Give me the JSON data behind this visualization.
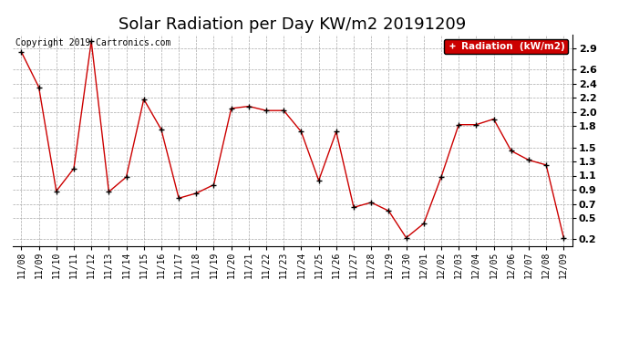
{
  "title": "Solar Radiation per Day KW/m2 20191209",
  "copyright_text": "Copyright 2019 Cartronics.com",
  "legend_label": "Radiation  (kW/m2)",
  "labels": [
    "11/08",
    "11/09",
    "11/10",
    "11/11",
    "11/12",
    "11/13",
    "11/14",
    "11/15",
    "11/16",
    "11/17",
    "11/18",
    "11/19",
    "11/20",
    "11/21",
    "11/22",
    "11/23",
    "11/24",
    "11/25",
    "11/26",
    "11/27",
    "11/28",
    "11/29",
    "11/30",
    "12/01",
    "12/02",
    "12/03",
    "12/04",
    "12/05",
    "12/06",
    "12/07",
    "12/08",
    "12/09"
  ],
  "values": [
    2.85,
    2.35,
    0.88,
    1.2,
    3.0,
    0.87,
    1.08,
    2.18,
    1.75,
    0.78,
    0.85,
    0.97,
    2.05,
    2.08,
    2.02,
    2.02,
    1.72,
    1.03,
    1.72,
    0.65,
    0.72,
    0.6,
    0.22,
    0.42,
    1.08,
    1.82,
    1.82,
    1.9,
    1.45,
    1.32,
    1.25,
    0.22
  ],
  "line_color": "#cc0000",
  "marker_color": "#000000",
  "bg_color": "#ffffff",
  "grid_color": "#aaaaaa",
  "ylim_min": 0.1,
  "ylim_max": 3.1,
  "yticks": [
    0.2,
    0.5,
    0.7,
    0.9,
    1.1,
    1.3,
    1.5,
    1.8,
    2.0,
    2.2,
    2.4,
    2.6,
    2.9
  ],
  "legend_bg": "#cc0000",
  "legend_text_color": "#ffffff",
  "title_fontsize": 13,
  "tick_fontsize": 8,
  "xlabel_fontsize": 7,
  "copyright_fontsize": 7
}
